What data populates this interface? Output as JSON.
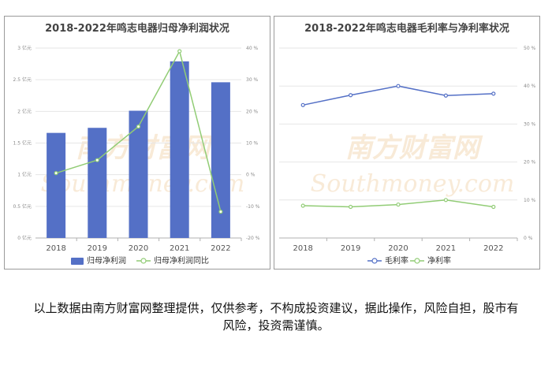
{
  "colors": {
    "bar": "#5470c6",
    "gross": "#5470c6",
    "net": "#91cc75",
    "yoy": "#91cc75",
    "watermark": "#f4d9b8"
  },
  "watermark": {
    "cn": "南方财富网",
    "en": "Southmoney.com"
  },
  "chart_data": [
    {
      "type": "bar",
      "title": "2018-2022年鸣志电器归母净利润状况",
      "categories": [
        "2018",
        "2019",
        "2020",
        "2021",
        "2022"
      ],
      "y_ticks_left": [
        "0 亿元",
        "0.5 亿元",
        "1 亿元",
        "1.5 亿元",
        "2 亿元",
        "2.5 亿元",
        "3 亿元"
      ],
      "y_ticks_right": [
        "-20 %",
        "-10 %",
        "0 %",
        "10 %",
        "20 %",
        "30 %",
        "40 %"
      ],
      "ylim_left": [
        0,
        3
      ],
      "ylim_right": [
        -20,
        40
      ],
      "series": [
        {
          "name": "归母净利润",
          "type": "bar",
          "axis": "left",
          "values": [
            1.66,
            1.74,
            2.01,
            2.79,
            2.46
          ]
        },
        {
          "name": "归母净利润同比",
          "type": "line",
          "axis": "right",
          "values": [
            0.5,
            4.6,
            15.2,
            39.0,
            -11.7
          ]
        }
      ],
      "legend": "bottom"
    },
    {
      "type": "line",
      "title": "2018-2022年鸣志电器毛利率与净利率状况",
      "categories": [
        "2018",
        "2019",
        "2020",
        "2021",
        "2022"
      ],
      "y_ticks_right": [
        "0 %",
        "10 %",
        "20 %",
        "30 %",
        "40 %",
        "50 %"
      ],
      "ylim": [
        0,
        50
      ],
      "series": [
        {
          "name": "毛利率",
          "values": [
            35.0,
            37.6,
            40.0,
            37.5,
            38.0
          ]
        },
        {
          "name": "净利率",
          "values": [
            8.5,
            8.2,
            8.8,
            10.0,
            8.2
          ]
        }
      ],
      "legend": "bottom"
    }
  ],
  "disclaimer": "以上数据由南方财富网整理提供，仅供参考，不构成投资建议，据此操作，风险自担，股市有风险，投资需谨慎。"
}
